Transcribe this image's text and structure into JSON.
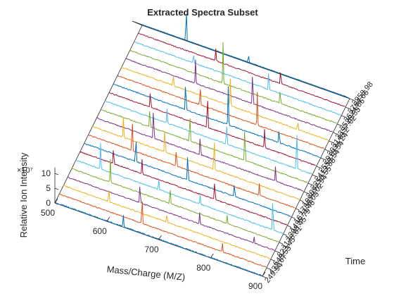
{
  "chart_data": {
    "type": "line",
    "title": "Extracted Spectra Subset",
    "xlabel": "Mass/Charge (M/Z)",
    "ylabel": "Time",
    "zlabel": "Relative Ion Intensity",
    "z_exponent_label": "×10⁷",
    "xlim": [
      500,
      900
    ],
    "x_ticks": [
      "500",
      "600",
      "700",
      "800",
      "900"
    ],
    "zlim": [
      0,
      10
    ],
    "z_ticks": [
      "0",
      "5",
      "10"
    ],
    "y_ticks": [
      "249.94",
      "437.67",
      "648.53",
      "823.45",
      "1178.61",
      "1308.45",
      "1495.79",
      "1673.48",
      "1786.03",
      "1999.02",
      "2092.94",
      "2258.55",
      "2413.88",
      "2558.54",
      "2918.54",
      "3034.24",
      "3148.2",
      "3357.62",
      "3526.53",
      "3624.66",
      "3764.66",
      "3958.98"
    ],
    "series_colors": [
      "#0072BD",
      "#D95319",
      "#EDB120",
      "#7E2F8E",
      "#77AC30",
      "#4DBEEE",
      "#A2142F"
    ],
    "peaks": [
      [
        [
          632,
          4
        ]
      ],
      [
        [
          660,
          10
        ],
        [
          815,
          3
        ]
      ],
      [
        [
          588,
          5
        ],
        [
          700,
          3
        ]
      ],
      [
        [
          640,
          7
        ],
        [
          755,
          4
        ],
        [
          860,
          2
        ]
      ],
      [
        [
          575,
          8
        ],
        [
          690,
          6
        ],
        [
          800,
          3
        ]
      ],
      [
        [
          548,
          9
        ],
        [
          660,
          4
        ],
        [
          740,
          3
        ],
        [
          880,
          12
        ]
      ],
      [
        [
          565,
          6
        ],
        [
          620,
          5
        ],
        [
          760,
          7
        ]
      ],
      [
        [
          600,
          9
        ],
        [
          700,
          10
        ],
        [
          790,
          5
        ]
      ],
      [
        [
          585,
          12
        ],
        [
          670,
          6
        ],
        [
          830,
          4
        ]
      ],
      [
        [
          560,
          7
        ],
        [
          640,
          9
        ],
        [
          735,
          12
        ]
      ],
      [
        [
          610,
          11
        ],
        [
          700,
          7
        ],
        [
          845,
          5
        ]
      ],
      [
        [
          595,
          7
        ],
        [
          672,
          10
        ],
        [
          778,
          13
        ]
      ],
      [
        [
          620,
          5
        ],
        [
          735,
          8
        ],
        [
          870,
          15
        ]
      ],
      [
        [
          580,
          6
        ],
        [
          690,
          12
        ],
        [
          800,
          6
        ]
      ],
      [
        [
          640,
          10
        ],
        [
          722,
          13
        ],
        [
          820,
          5
        ]
      ],
      [
        [
          660,
          7
        ],
        [
          770,
          11
        ]
      ],
      [
        [
          600,
          4
        ],
        [
          710,
          9
        ],
        [
          840,
          3
        ]
      ],
      [
        [
          635,
          8
        ],
        [
          745,
          12
        ]
      ],
      [
        [
          680,
          14
        ],
        [
          790,
          5
        ]
      ],
      [
        [
          615,
          3
        ],
        [
          760,
          7
        ]
      ],
      [
        [
          650,
          4
        ],
        [
          775,
          5
        ]
      ],
      [
        [
          585,
          12
        ],
        [
          705,
          3
        ]
      ]
    ]
  }
}
